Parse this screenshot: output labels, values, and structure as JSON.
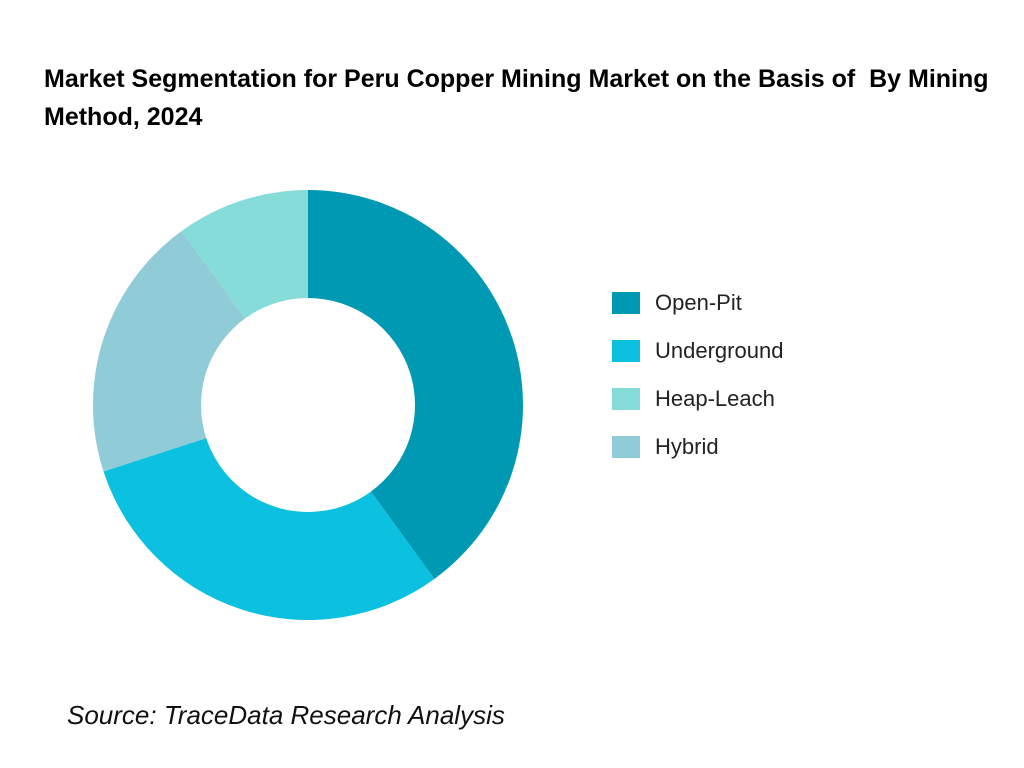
{
  "title": "Market Segmentation for Peru Copper Mining Market on the Basis of  By Mining Method, 2024",
  "source": "Source: TraceData Research Analysis",
  "chart_data": {
    "type": "pie",
    "subtype": "donut",
    "title": "Market Segmentation for Peru Copper Mining Market on the Basis of  By Mining Method, 2024",
    "legend_position": "right",
    "start_angle": "12 o'clock",
    "direction": "clockwise",
    "categories": [
      "Open-Pit",
      "Underground",
      "Heap-Leach",
      "Hybrid"
    ],
    "values": [
      40,
      30,
      10,
      20
    ],
    "slice_order": [
      "Open-Pit",
      "Underground",
      "Hybrid",
      "Heap-Leach"
    ],
    "colors": {
      "Open-Pit": "#0099b3",
      "Underground": "#0cc0df",
      "Heap-Leach": "#86dcd9",
      "Hybrid": "#8fccd8"
    }
  }
}
